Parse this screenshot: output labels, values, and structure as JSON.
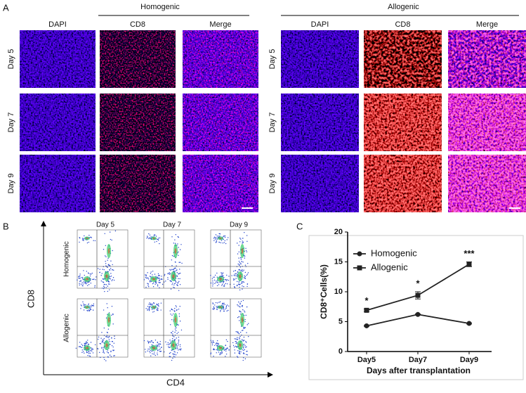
{
  "panel_a": {
    "label": "A",
    "groups": [
      {
        "title": "Homogenic",
        "columns": [
          "DAPI",
          "CD8",
          "Merge"
        ],
        "rows": [
          "Day 5",
          "Day 7",
          "Day 9"
        ]
      },
      {
        "title": "Allogenic",
        "columns": [
          "DAPI",
          "CD8",
          "Merge"
        ],
        "rows": [
          "Day 5",
          "Day 7",
          "Day 9"
        ]
      }
    ]
  },
  "panel_b": {
    "label": "B",
    "y_label": "CD8",
    "x_label": "CD4",
    "columns": [
      "Day 5",
      "Day 7",
      "Day 9"
    ],
    "rows": [
      "Homogenic",
      "Allogenic"
    ]
  },
  "panel_c": {
    "label": "C"
  },
  "chart_data": {
    "type": "line",
    "y_label": "CD8⁺Cells(%)",
    "x_label": "Days after transplantation",
    "categories": [
      "Day5",
      "Day7",
      "Day9"
    ],
    "series": [
      {
        "name": "Homogenic",
        "color": "#222222",
        "marker": "circle",
        "values": [
          4.3,
          6.2,
          4.7
        ],
        "errors": [
          0.1,
          0.1,
          0.1
        ]
      },
      {
        "name": "Allogenic",
        "color": "#222222",
        "marker": "square",
        "values": [
          6.9,
          9.4,
          14.6
        ],
        "errors": [
          0.2,
          0.6,
          0.4
        ]
      }
    ],
    "annotations": [
      "*",
      "*",
      "***"
    ],
    "ylim": [
      0,
      20
    ],
    "yticks": [
      0,
      5,
      10,
      15,
      20
    ],
    "legend": "top-left"
  }
}
